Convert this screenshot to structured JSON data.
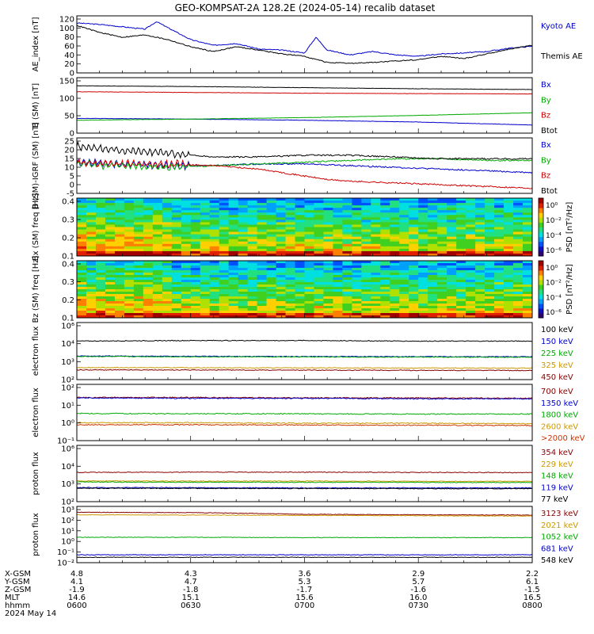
{
  "title": "GEO-KOMPSAT-2A 128.2E (2024-05-14) recalib dataset",
  "footer": {
    "row_labels": [
      "X-GSM",
      "Y-GSM",
      "Z-GSM",
      "MLT",
      "hhmm",
      "2024 May 14"
    ],
    "columns": [
      {
        "x": "4.8",
        "y": "4.1",
        "z": "-1.9",
        "mlt": "14.6",
        "hhmm": "0600"
      },
      {
        "x": "4.3",
        "y": "4.7",
        "z": "-1.8",
        "mlt": "15.1",
        "hhmm": "0630"
      },
      {
        "x": "3.6",
        "y": "5.3",
        "z": "-1.7",
        "mlt": "15.6",
        "hhmm": "0700"
      },
      {
        "x": "2.9",
        "y": "5.7",
        "z": "-1.6",
        "mlt": "16.0",
        "hhmm": "0730"
      },
      {
        "x": "2.2",
        "y": "6.1",
        "z": "-1.5",
        "mlt": "16.5",
        "hhmm": "0800"
      }
    ]
  },
  "chart_data": [
    {
      "type": "line",
      "panel": "ae",
      "ylabel": "AE_index [nT]",
      "yticks": [
        "120",
        "100",
        "80",
        "60",
        "40",
        "20",
        "0"
      ],
      "ylim": [
        0,
        120
      ],
      "x_range_hours": [
        6.0,
        8.0
      ],
      "series": [
        {
          "name": "Kyoto AE",
          "color": "#0000cc",
          "x": [
            6.0,
            6.1,
            6.2,
            6.3,
            6.35,
            6.4,
            6.5,
            6.6,
            6.7,
            6.8,
            6.9,
            7.0,
            7.05,
            7.1,
            7.2,
            7.3,
            7.4,
            7.5,
            7.6,
            7.7,
            7.8,
            7.9,
            8.0
          ],
          "y": [
            105,
            102,
            97,
            92,
            108,
            95,
            70,
            58,
            62,
            50,
            48,
            42,
            75,
            48,
            38,
            45,
            38,
            35,
            40,
            42,
            45,
            52,
            56
          ]
        },
        {
          "name": "Themis AE",
          "color": "#000000",
          "x": [
            6.0,
            6.1,
            6.2,
            6.3,
            6.4,
            6.5,
            6.6,
            6.7,
            6.8,
            6.9,
            7.0,
            7.1,
            7.2,
            7.3,
            7.4,
            7.5,
            7.6,
            7.7,
            7.8,
            7.9,
            8.0
          ],
          "y": [
            100,
            85,
            75,
            80,
            70,
            55,
            45,
            55,
            48,
            40,
            35,
            22,
            20,
            22,
            25,
            28,
            35,
            30,
            40,
            50,
            58
          ]
        }
      ]
    },
    {
      "type": "line",
      "panel": "b_sm",
      "ylabel": "B (SM) [nT]",
      "yticks": [
        "150",
        "100",
        "50",
        "0"
      ],
      "ylim": [
        0,
        150
      ],
      "x_range_hours": [
        6.0,
        8.0
      ],
      "series": [
        {
          "name": "Bx",
          "color": "#0000cc",
          "x": [
            6.0,
            6.5,
            7.0,
            7.5,
            8.0
          ],
          "y": [
            40,
            38,
            35,
            30,
            22
          ]
        },
        {
          "name": "By",
          "color": "#00aa00",
          "x": [
            6.0,
            6.5,
            7.0,
            7.5,
            8.0
          ],
          "y": [
            35,
            38,
            42,
            48,
            55
          ]
        },
        {
          "name": "Bz",
          "color": "#cc0000",
          "x": [
            6.0,
            6.5,
            7.0,
            7.5,
            8.0
          ],
          "y": [
            112,
            110,
            108,
            107,
            106
          ]
        },
        {
          "name": "Btot",
          "color": "#000000",
          "x": [
            6.0,
            6.5,
            7.0,
            7.5,
            8.0
          ],
          "y": [
            128,
            126,
            123,
            120,
            118
          ]
        }
      ]
    },
    {
      "type": "line",
      "panel": "b_sm_igrf",
      "ylabel": "B (SM)-IGRF (SM) [nT]",
      "yticks": [
        "25",
        "20",
        "15",
        "10",
        "5",
        "0",
        "-5"
      ],
      "ylim": [
        -7,
        25
      ],
      "x_range_hours": [
        6.0,
        8.0
      ],
      "series": [
        {
          "name": "Bx",
          "color": "#0000cc",
          "x": [
            6.0,
            6.2,
            6.4,
            6.6,
            6.8,
            7.0,
            7.2,
            7.4,
            7.6,
            7.8,
            8.0
          ],
          "y": [
            11,
            10,
            9,
            9,
            10,
            10,
            9,
            8,
            7,
            6,
            5
          ]
        },
        {
          "name": "By",
          "color": "#00aa00",
          "x": [
            6.0,
            6.2,
            6.4,
            6.6,
            6.8,
            7.0,
            7.2,
            7.4,
            7.6,
            7.8,
            8.0
          ],
          "y": [
            10,
            9,
            8,
            9,
            10,
            11,
            12,
            13,
            13,
            12,
            12
          ]
        },
        {
          "name": "Bz",
          "color": "#cc0000",
          "x": [
            6.0,
            6.2,
            6.4,
            6.6,
            6.8,
            7.0,
            7.1,
            7.2,
            7.4,
            7.6,
            7.8,
            8.0
          ],
          "y": [
            11,
            10,
            10,
            9,
            7,
            3,
            1,
            0,
            -1,
            -2,
            -3,
            -4
          ]
        },
        {
          "name": "Btot",
          "color": "#000000",
          "x": [
            6.0,
            6.2,
            6.4,
            6.6,
            6.8,
            7.0,
            7.2,
            7.4,
            7.6,
            7.8,
            8.0
          ],
          "y": [
            20,
            18,
            16,
            14,
            14,
            15,
            15,
            14,
            13,
            13,
            13
          ]
        }
      ]
    },
    {
      "type": "heatmap",
      "panel": "bx_spec",
      "ylabel": "Bx (SM) freq [Hz]",
      "yticks": [
        "0.4",
        "0.3",
        "0.2",
        "0.1"
      ],
      "ylim": [
        0,
        0.5
      ],
      "colorbar": {
        "label": "PSD [nT²/Hz]",
        "ticks": [
          "10⁰",
          "10⁻²",
          "10⁻⁴",
          "10⁻⁶"
        ]
      }
    },
    {
      "type": "heatmap",
      "panel": "bz_spec",
      "ylabel": "Bz (SM) freq [Hz]",
      "yticks": [
        "0.4",
        "0.3",
        "0.2",
        "0.1"
      ],
      "ylim": [
        0,
        0.5
      ],
      "colorbar": {
        "label": "PSD [nT²/Hz]",
        "ticks": [
          "10⁰",
          "10⁻²",
          "10⁻⁴",
          "10⁻⁶"
        ]
      }
    },
    {
      "type": "line",
      "panel": "elec_low",
      "ylabel": "electron flux",
      "yticks": [
        "10⁶",
        "10⁴",
        "10³",
        "10²"
      ],
      "log": true,
      "ylim": [
        100,
        1000000
      ],
      "x_range_hours": [
        6.0,
        8.0
      ],
      "series": [
        {
          "name": "100 keV",
          "color": "#000000",
          "x": [
            6.0,
            6.5,
            7.0,
            7.5,
            8.0
          ],
          "y": [
            50000,
            55000,
            55000,
            50000,
            50000
          ]
        },
        {
          "name": "150 keV",
          "color": "#0000cc",
          "x": [
            6.0,
            6.5,
            7.0,
            7.5,
            8.0
          ],
          "y": [
            4500,
            4300,
            4200,
            4100,
            4000
          ]
        },
        {
          "name": "225 keV",
          "color": "#00aa00",
          "x": [
            6.0,
            6.5,
            7.0,
            7.5,
            8.0
          ],
          "y": [
            4200,
            4000,
            3900,
            3800,
            3700
          ]
        },
        {
          "name": "325 keV",
          "color": "#cc9900",
          "x": [
            6.0,
            6.5,
            7.0,
            7.5,
            8.0
          ],
          "y": [
            700,
            680,
            660,
            650,
            640
          ]
        },
        {
          "name": "450 keV",
          "color": "#880000",
          "x": [
            6.0,
            6.5,
            7.0,
            7.5,
            8.0
          ],
          "y": [
            480,
            470,
            460,
            450,
            440
          ]
        }
      ]
    },
    {
      "type": "line",
      "panel": "elec_high",
      "ylabel": "electron flux",
      "yticks": [
        "10²",
        "10¹",
        "10⁰",
        "10⁻¹"
      ],
      "log": true,
      "ylim": [
        0.1,
        100
      ],
      "x_range_hours": [
        6.0,
        8.0
      ],
      "series": [
        {
          "name": "700 keV",
          "color": "#880000",
          "x": [
            6.0,
            6.5,
            7.0,
            7.5,
            8.0
          ],
          "y": [
            20,
            20,
            19,
            19,
            18
          ]
        },
        {
          "name": "1350 keV",
          "color": "#0000cc",
          "x": [
            6.0,
            6.5,
            7.0,
            7.5,
            8.0
          ],
          "y": [
            19,
            18,
            18,
            17,
            17
          ]
        },
        {
          "name": "1800 keV",
          "color": "#00aa00",
          "x": [
            6.0,
            6.5,
            7.0,
            7.5,
            8.0
          ],
          "y": [
            2.8,
            2.7,
            2.7,
            2.6,
            2.6
          ]
        },
        {
          "name": "2600 keV",
          "color": "#cc9900",
          "x": [
            6.0,
            6.5,
            7.0,
            7.5,
            8.0
          ],
          "y": [
            0.9,
            0.9,
            0.85,
            0.85,
            0.8
          ]
        },
        {
          "name": ">2000 keV",
          "color": "#cc3300",
          "x": [
            6.0,
            6.5,
            7.0,
            7.5,
            8.0
          ],
          "y": [
            0.7,
            0.7,
            0.68,
            0.66,
            0.65
          ]
        }
      ]
    },
    {
      "type": "line",
      "panel": "prot_low",
      "ylabel": "proton flux",
      "yticks": [
        "10⁶",
        "10⁴",
        "10³",
        "10²"
      ],
      "log": true,
      "ylim": [
        100,
        1000000
      ],
      "x_range_hours": [
        6.0,
        8.0
      ],
      "series": [
        {
          "name": "354 keV",
          "color": "#880000",
          "x": [
            6.0,
            6.5,
            7.0,
            7.5,
            8.0
          ],
          "y": [
            12000,
            12500,
            12500,
            12000,
            11500
          ]
        },
        {
          "name": "229 keV",
          "color": "#cc9900",
          "x": [
            6.0,
            6.5,
            7.0,
            7.5,
            8.0
          ],
          "y": [
            3000,
            2900,
            2900,
            2800,
            2800
          ]
        },
        {
          "name": "148 keV",
          "color": "#00aa00",
          "x": [
            6.0,
            6.5,
            7.0,
            7.5,
            8.0
          ],
          "y": [
            2500,
            2400,
            2400,
            2350,
            2300
          ]
        },
        {
          "name": "119 keV",
          "color": "#0000cc",
          "x": [
            6.0,
            6.5,
            7.0,
            7.5,
            8.0
          ],
          "y": [
            1000,
            980,
            960,
            950,
            940
          ]
        },
        {
          "name": "77 keV",
          "color": "#000000",
          "x": [
            6.0,
            6.5,
            7.0,
            7.5,
            8.0
          ],
          "y": [
            900,
            880,
            860,
            850,
            840
          ]
        }
      ]
    },
    {
      "type": "line",
      "panel": "prot_high",
      "ylabel": "proton flux",
      "yticks": [
        "10³",
        "10²",
        "10¹",
        "10⁰",
        "10⁻¹",
        "10⁻²"
      ],
      "log": true,
      "ylim": [
        0.01,
        1000
      ],
      "x_range_hours": [
        6.0,
        8.0
      ],
      "series": [
        {
          "name": "3123 keV",
          "color": "#880000",
          "x": [
            6.0,
            6.5,
            7.0,
            7.5,
            8.0
          ],
          "y": [
            300,
            280,
            200,
            180,
            170
          ]
        },
        {
          "name": "2021 keV",
          "color": "#cc9900",
          "x": [
            6.0,
            6.5,
            7.0,
            7.5,
            8.0
          ],
          "y": [
            180,
            170,
            160,
            150,
            140
          ]
        },
        {
          "name": "1052 keV",
          "color": "#00aa00",
          "x": [
            6.0,
            6.5,
            7.0,
            7.5,
            8.0
          ],
          "y": [
            1.8,
            1.8,
            1.7,
            1.7,
            1.7
          ]
        },
        {
          "name": "681 keV",
          "color": "#0000cc",
          "x": [
            6.0,
            6.5,
            7.0,
            7.5,
            8.0
          ],
          "y": [
            0.05,
            0.05,
            0.05,
            0.05,
            0.05
          ]
        },
        {
          "name": "548 keV",
          "color": "#000000",
          "x": [
            6.0,
            6.5,
            7.0,
            7.5,
            8.0
          ],
          "y": [
            0.03,
            0.03,
            0.03,
            0.03,
            0.03
          ]
        }
      ]
    }
  ]
}
